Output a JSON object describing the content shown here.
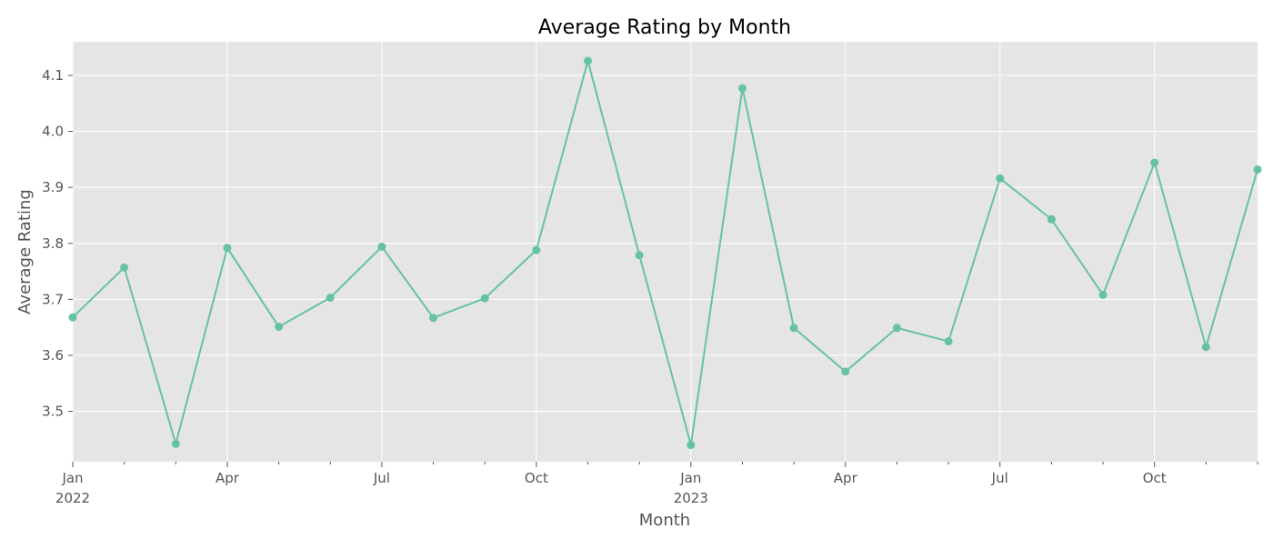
{
  "chart_data": {
    "type": "line",
    "title": "Average Rating by Month",
    "xlabel": "Month",
    "ylabel": "Average Rating",
    "x": [
      "2022-01",
      "2022-02",
      "2022-03",
      "2022-04",
      "2022-05",
      "2022-06",
      "2022-07",
      "2022-08",
      "2022-09",
      "2022-10",
      "2022-11",
      "2022-12",
      "2023-01",
      "2023-02",
      "2023-03",
      "2023-04",
      "2023-05",
      "2023-06",
      "2023-07",
      "2023-08",
      "2023-09",
      "2023-10",
      "2023-11",
      "2023-12"
    ],
    "series": [
      {
        "values": [
          3.668,
          3.757,
          3.442,
          3.792,
          3.651,
          3.703,
          3.794,
          3.667,
          3.702,
          3.788,
          4.126,
          3.779,
          3.44,
          4.077,
          3.649,
          3.571,
          3.649,
          3.625,
          3.916,
          3.843,
          3.708,
          3.944,
          3.615,
          3.932
        ]
      }
    ],
    "ylim": [
      3.41,
      4.16
    ],
    "xlim": [
      "2022-01",
      "2023-12"
    ],
    "yticks": [
      3.5,
      3.6,
      3.7,
      3.8,
      3.9,
      4.0,
      4.1
    ],
    "ytick_labels": [
      "3.5",
      "3.6",
      "3.7",
      "3.8",
      "3.9",
      "4.0",
      "4.1"
    ],
    "xticks_major": [
      {
        "x": "2022-01",
        "label": "Jan",
        "sublabel": "2022"
      },
      {
        "x": "2022-04",
        "label": "Apr",
        "sublabel": ""
      },
      {
        "x": "2022-07",
        "label": "Jul",
        "sublabel": ""
      },
      {
        "x": "2022-10",
        "label": "Oct",
        "sublabel": ""
      },
      {
        "x": "2023-01",
        "label": "Jan",
        "sublabel": "2023"
      },
      {
        "x": "2023-04",
        "label": "Apr",
        "sublabel": ""
      },
      {
        "x": "2023-07",
        "label": "Jul",
        "sublabel": ""
      },
      {
        "x": "2023-10",
        "label": "Oct",
        "sublabel": ""
      }
    ],
    "grid": true,
    "colors": {
      "line": "#66c2a5",
      "plot_background": "#e5e5e5",
      "grid": "#ffffff"
    }
  }
}
